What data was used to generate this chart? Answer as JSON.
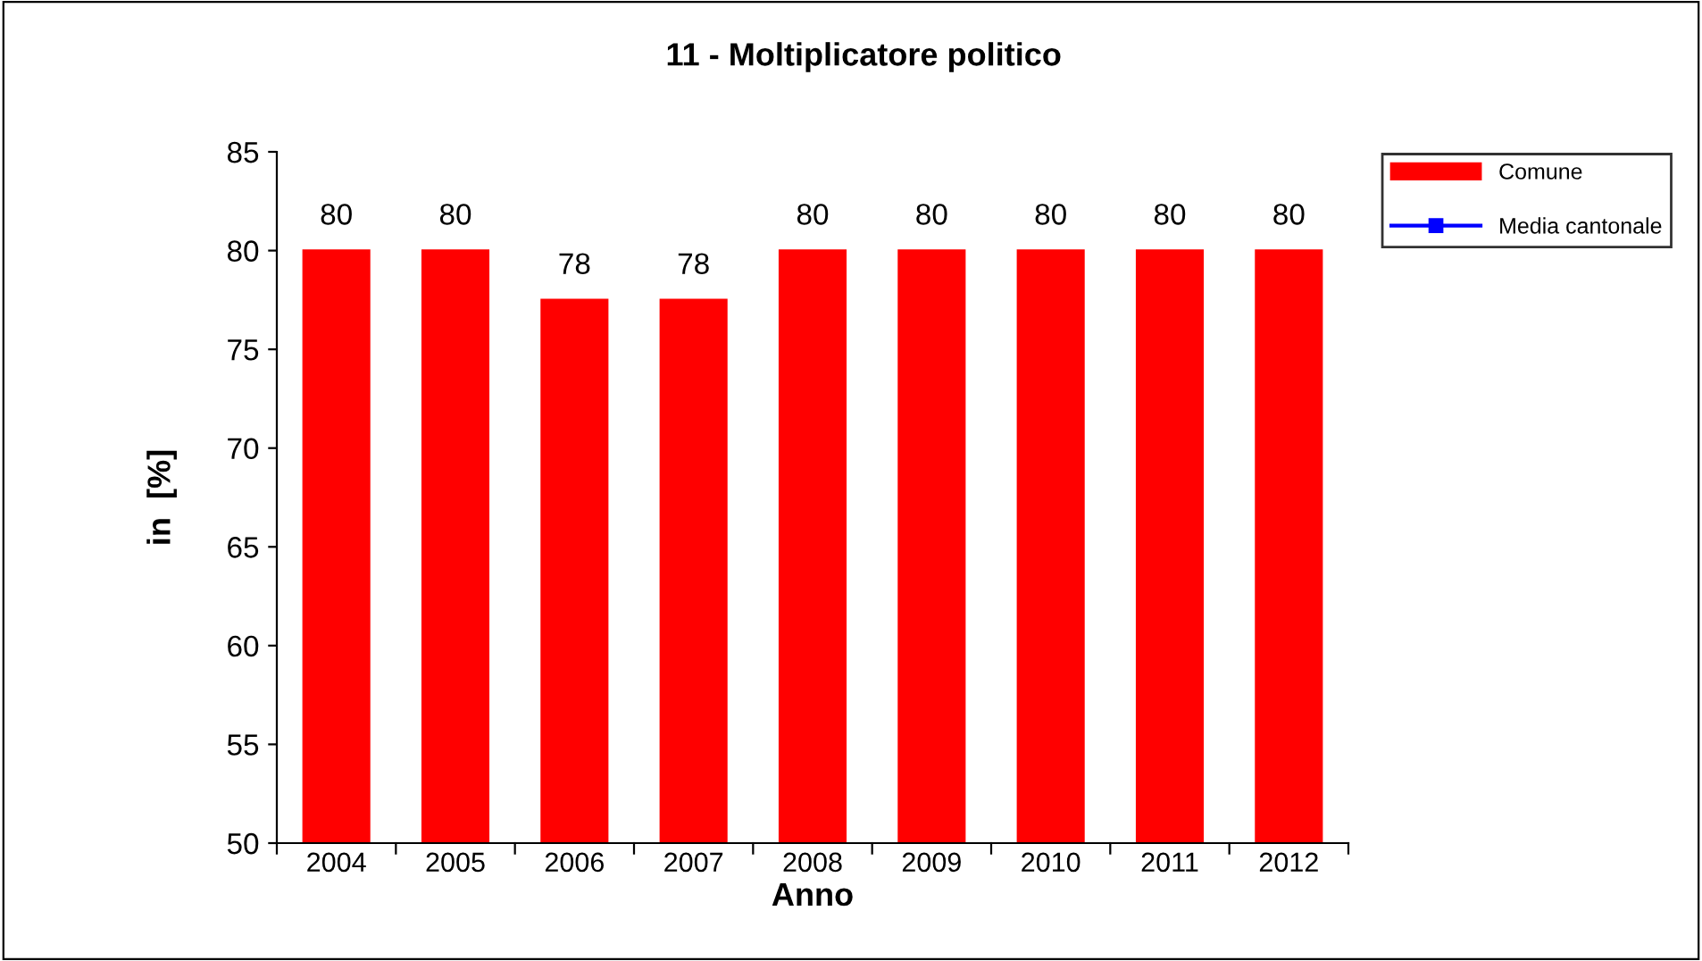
{
  "chart_data": {
    "type": "bar",
    "title": "11 - Moltiplicatore politico",
    "xlabel": "Anno",
    "ylabel": "in  [%]",
    "categories": [
      "2004",
      "2005",
      "2006",
      "2007",
      "2008",
      "2009",
      "2010",
      "2011",
      "2012"
    ],
    "series": [
      {
        "name": "Comune",
        "color": "#ff0000",
        "values": [
          80,
          80,
          77.5,
          77.5,
          80,
          80,
          80,
          80,
          80
        ],
        "value_labels": [
          "80",
          "80",
          "78",
          "78",
          "80",
          "80",
          "80",
          "80",
          "80"
        ]
      },
      {
        "name": "Media cantonale",
        "type": "line",
        "color": "#0000ff",
        "marker": "square",
        "values": [
          null,
          null,
          null,
          null,
          null,
          null,
          null,
          null,
          null
        ]
      }
    ],
    "ylim": [
      50,
      85
    ],
    "yticks": [
      50,
      55,
      60,
      65,
      70,
      75,
      80,
      85
    ],
    "grid": false,
    "legend": "top right"
  }
}
